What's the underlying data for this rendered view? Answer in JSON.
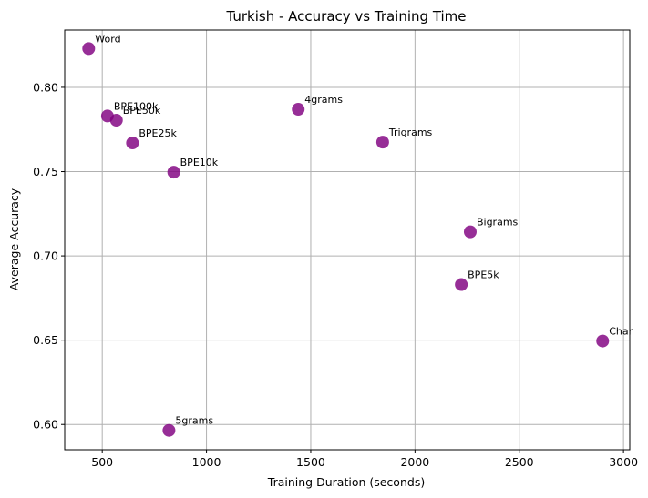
{
  "chart_data": {
    "type": "scatter",
    "title": "Turkish - Accuracy vs Training Time",
    "xlabel": "Training Duration (seconds)",
    "ylabel": "Average Accuracy",
    "xlim": [
      320,
      3030
    ],
    "ylim": [
      0.585,
      0.834
    ],
    "xticks": [
      500,
      1000,
      1500,
      2000,
      2500,
      3000
    ],
    "yticks": [
      0.6,
      0.65,
      0.7,
      0.75,
      0.8
    ],
    "grid": true,
    "marker_color": "#800080",
    "points": [
      {
        "label": "Word",
        "x": 435,
        "y": 0.823
      },
      {
        "label": "BPE100k",
        "x": 525,
        "y": 0.783
      },
      {
        "label": "BPE50k",
        "x": 568,
        "y": 0.7805
      },
      {
        "label": "BPE25k",
        "x": 645,
        "y": 0.767
      },
      {
        "label": "BPE10k",
        "x": 843,
        "y": 0.7497
      },
      {
        "label": "5grams",
        "x": 820,
        "y": 0.5965
      },
      {
        "label": "4grams",
        "x": 1440,
        "y": 0.787
      },
      {
        "label": "Trigrams",
        "x": 1845,
        "y": 0.7675
      },
      {
        "label": "Bigrams",
        "x": 2265,
        "y": 0.7143
      },
      {
        "label": "BPE5k",
        "x": 2222,
        "y": 0.683
      },
      {
        "label": "Char",
        "x": 2900,
        "y": 0.6495
      }
    ]
  }
}
